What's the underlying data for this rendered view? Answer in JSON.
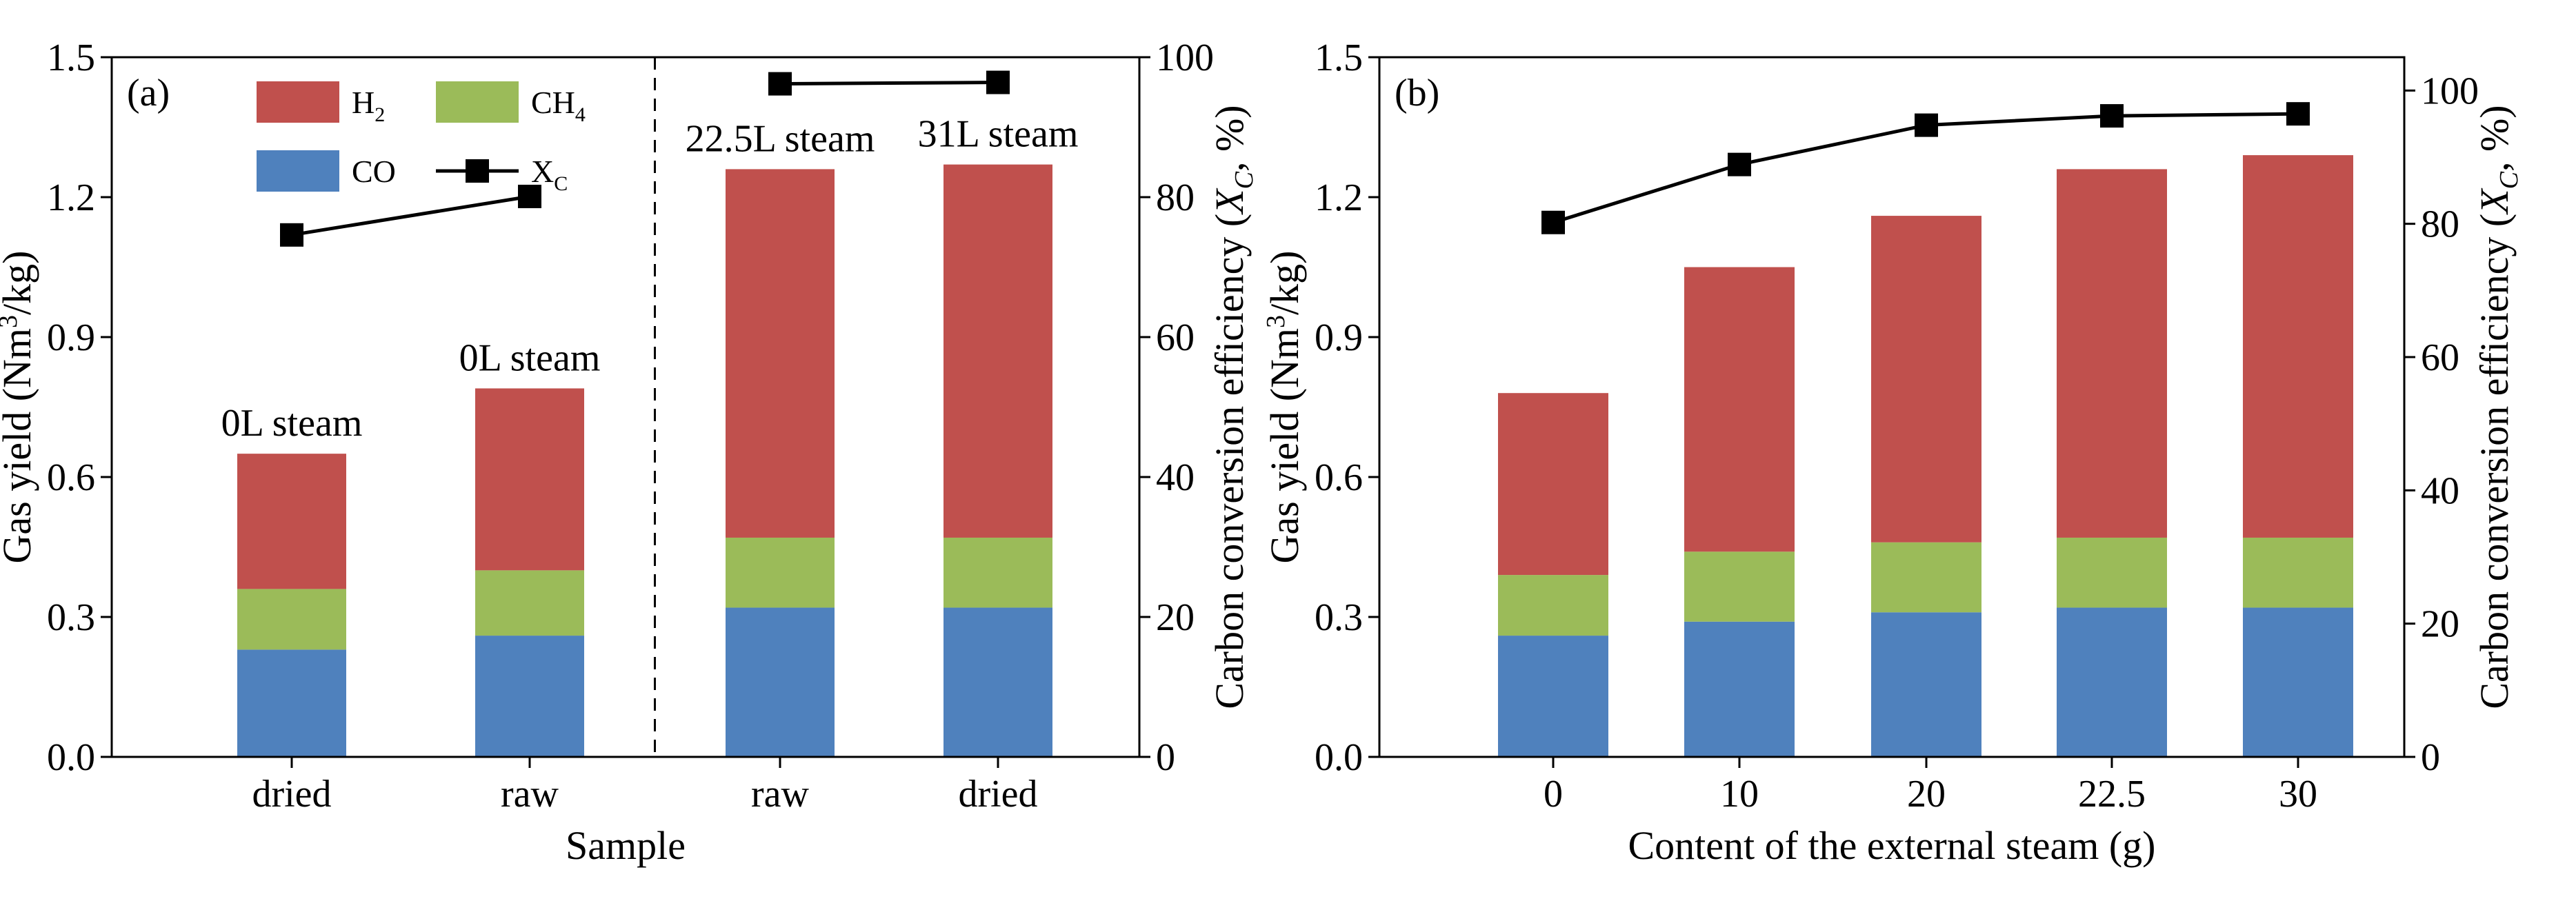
{
  "colors": {
    "H2": "#c0504d",
    "CH4": "#9bbb59",
    "CO": "#4f81bd",
    "XC": "#000000"
  },
  "chart_data": [
    {
      "panel": "(a)",
      "type": "bar",
      "stacked": true,
      "categories": [
        "dried",
        "raw",
        "raw",
        "dried"
      ],
      "group_labels": [
        "0L steam",
        "0L steam",
        "22.5L steam",
        "31L steam"
      ],
      "divider_after_index": 1,
      "xlabel": "Sample",
      "ylabel": {
        "prefix": "Gas yield (Nm",
        "sup": "3",
        "suffix": "/kg)"
      },
      "ylim": [
        0,
        1.5
      ],
      "yticks": [
        "0.0",
        "0.3",
        "0.6",
        "0.9",
        "1.2",
        "1.5"
      ],
      "y2label": {
        "prefix": "Carbon conversion efficiency (",
        "italic": "X",
        "sub": "C",
        "suffix": ", %)"
      },
      "y2lim": [
        0,
        100
      ],
      "y2ticks": [
        "0",
        "20",
        "40",
        "60",
        "80",
        "100"
      ],
      "legend": {
        "placement": "top-left",
        "items": [
          {
            "key": "H2",
            "base": "H",
            "sub": "2"
          },
          {
            "key": "CH4",
            "base": "CH",
            "sub": "4"
          },
          {
            "key": "CO",
            "base": "CO",
            "sub": ""
          },
          {
            "key": "XC",
            "base": "X",
            "sub": "C"
          }
        ]
      },
      "series": [
        {
          "name": "CO",
          "values": [
            0.23,
            0.26,
            0.32,
            0.32
          ]
        },
        {
          "name": "CH4",
          "values": [
            0.13,
            0.14,
            0.15,
            0.15
          ]
        },
        {
          "name": "H2",
          "values": [
            0.29,
            0.39,
            0.79,
            0.8
          ]
        }
      ],
      "line_series": {
        "name": "XC",
        "axis": "right",
        "segments": [
          {
            "x_index": [
              0,
              1
            ],
            "values": [
              74.6,
              80.1
            ]
          },
          {
            "x_index": [
              2,
              3
            ],
            "values": [
              96.2,
              96.4
            ]
          }
        ]
      }
    },
    {
      "panel": "(b)",
      "type": "bar",
      "stacked": true,
      "categories": [
        "0",
        "10",
        "20",
        "22.5",
        "30"
      ],
      "xlabel": "Content of the external steam (g)",
      "ylabel": {
        "prefix": "Gas yield (Nm",
        "sup": "3",
        "suffix": "/kg)"
      },
      "ylim": [
        0,
        1.5
      ],
      "yticks": [
        "0.0",
        "0.3",
        "0.6",
        "0.9",
        "1.2",
        "1.5"
      ],
      "y2label": {
        "prefix": "Carbon conversion efficiency (",
        "italic": "X",
        "sub": "C",
        "suffix": ", %)"
      },
      "y2lim": [
        0,
        105
      ],
      "y2ticks": [
        "0",
        "20",
        "40",
        "60",
        "80",
        "100"
      ],
      "series": [
        {
          "name": "CO",
          "values": [
            0.26,
            0.29,
            0.31,
            0.32,
            0.32
          ]
        },
        {
          "name": "CH4",
          "values": [
            0.13,
            0.15,
            0.15,
            0.15,
            0.15
          ]
        },
        {
          "name": "H2",
          "values": [
            0.39,
            0.61,
            0.7,
            0.79,
            0.82
          ]
        }
      ],
      "line_series": {
        "name": "XC",
        "axis": "right",
        "segments": [
          {
            "x_index": [
              0,
              1,
              2,
              3,
              4
            ],
            "values": [
              80.2,
              88.9,
              94.8,
              96.2,
              96.5
            ]
          }
        ]
      }
    }
  ]
}
